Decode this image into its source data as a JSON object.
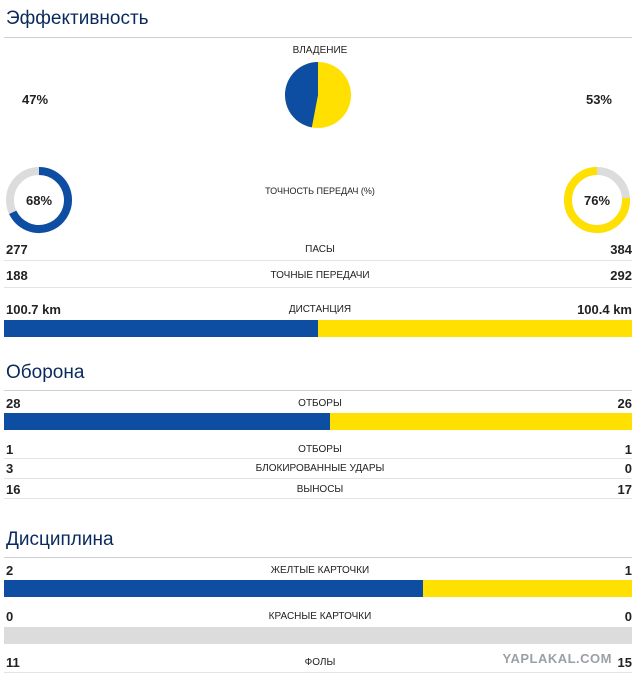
{
  "sections": {
    "efficiency": "Эффективность",
    "defense": "Оборона",
    "discipline": "Дисциплина"
  },
  "possession": {
    "label": "ВЛАДЕНИЕ",
    "home": "47%",
    "away": "53%",
    "home_value": 47,
    "away_value": 53
  },
  "accuracy": {
    "label": "ТОЧНОСТЬ ПЕРЕДАЧ (%)",
    "home": "68%",
    "away": "76%",
    "home_value": 68,
    "away_value": 76
  },
  "passes": {
    "label": "ПАСЫ",
    "home": "277",
    "away": "384"
  },
  "accurate_passes": {
    "label": "ТОЧНЫЕ ПЕРЕДАЧИ",
    "home": "188",
    "away": "292"
  },
  "distance": {
    "label": "ДИСТАНЦИЯ",
    "home": "100.7 km",
    "away": "100.4 km",
    "home_value": 100.7,
    "away_value": 100.4
  },
  "tackles": {
    "label": "ОТБОРЫ",
    "home": "28",
    "away": "26",
    "home_value": 28,
    "away_value": 26
  },
  "tackles2": {
    "label": "ОТБОРЫ",
    "home": "1",
    "away": "1"
  },
  "blocked": {
    "label": "БЛОКИРОВАННЫЕ УДАРЫ",
    "home": "3",
    "away": "0"
  },
  "clearances": {
    "label": "ВЫНОСЫ",
    "home": "16",
    "away": "17"
  },
  "yellow": {
    "label": "ЖЕЛТЫЕ КАРТОЧКИ",
    "home": "2",
    "away": "1",
    "home_value": 2,
    "away_value": 1
  },
  "red": {
    "label": "КРАСНЫЕ КАРТОЧКИ",
    "home": "0",
    "away": "0",
    "home_value": 0,
    "away_value": 0
  },
  "fouls": {
    "label": "ФОЛЫ",
    "home": "11",
    "away": "15"
  },
  "watermark": "YAPLAKAL.COM",
  "colors": {
    "home": "#0d4ea3",
    "away": "#ffe000",
    "track": "#dcdcdc",
    "title": "#0a2a5c"
  }
}
